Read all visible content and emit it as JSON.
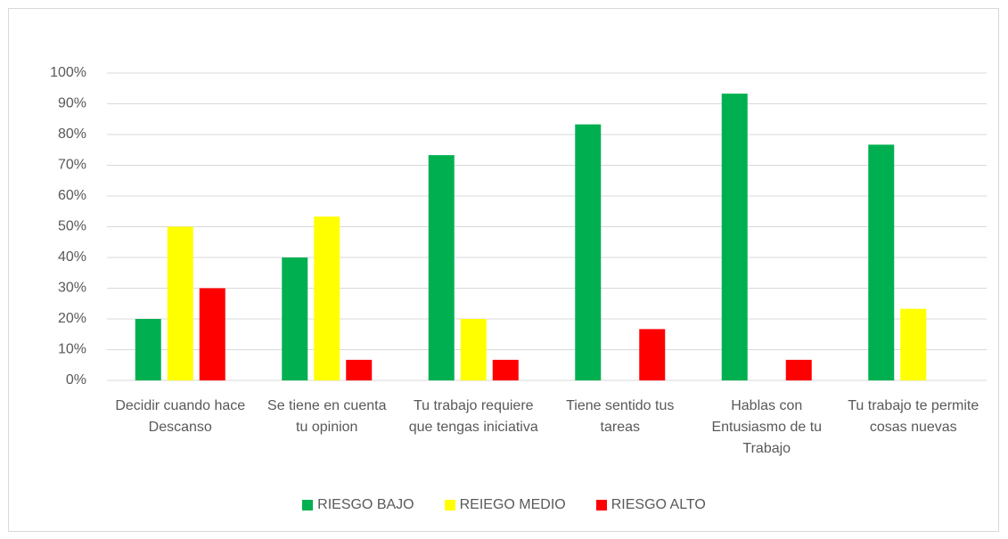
{
  "chart_data": {
    "type": "bar",
    "categories": [
      "Decidir cuando hace Descanso",
      "Se tiene en cuenta tu opinion",
      "Tu trabajo requiere que tengas iniciativa",
      "Tiene sentido tus tareas",
      "Hablas con Entusiasmo de tu Trabajo",
      "Tu trabajo te permite cosas nuevas"
    ],
    "series": [
      {
        "name": "RIESGO BAJO",
        "color": "#00b050",
        "values": [
          20,
          40,
          73.3,
          83.3,
          93.3,
          76.7
        ]
      },
      {
        "name": "REIEGO MEDIO",
        "color": "#ffff00",
        "values": [
          50,
          53.3,
          20,
          0,
          0,
          23.3
        ]
      },
      {
        "name": "RIESGO ALTO",
        "color": "#ff0000",
        "values": [
          30,
          6.7,
          6.7,
          16.7,
          6.7,
          0
        ]
      }
    ],
    "ylim": [
      0,
      100
    ],
    "yticks": [
      {
        "value": 0,
        "label": "0%"
      },
      {
        "value": 10,
        "label": "10%"
      },
      {
        "value": 20,
        "label": "20%"
      },
      {
        "value": 30,
        "label": "30%"
      },
      {
        "value": 40,
        "label": "40%"
      },
      {
        "value": 50,
        "label": "50%"
      },
      {
        "value": 60,
        "label": "60%"
      },
      {
        "value": 70,
        "label": "70%"
      },
      {
        "value": 80,
        "label": "80%"
      },
      {
        "value": 90,
        "label": "90%"
      },
      {
        "value": 100,
        "label": "100%"
      }
    ],
    "grid": true,
    "legend": "bottom"
  }
}
